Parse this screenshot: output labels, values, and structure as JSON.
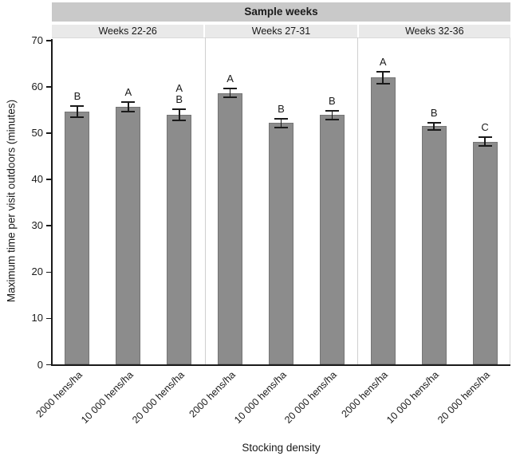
{
  "chart_data": {
    "type": "bar",
    "title": "Sample weeks",
    "xlabel": "Stocking density",
    "ylabel": "Maximum time per visit outdoors (minutes)",
    "ylim": [
      0,
      70
    ],
    "yticks": [
      0,
      10,
      20,
      30,
      40,
      50,
      60,
      70
    ],
    "grid": false,
    "legend": "none",
    "bar_color": "#8c8c8c",
    "bar_edge_color": "#757575",
    "error_bar_color": "#1a1a1a",
    "title_strip_fill": "#c9c9c9",
    "subheader_strip_fill": "#e9e9e9",
    "categories": [
      "2000 hens/ha",
      "10 000 hens/ha",
      "20 000 hens/ha"
    ],
    "panels": [
      {
        "label": "Weeks 22-26",
        "bars": [
          {
            "category": "2000 hens/ha",
            "value": 54.6,
            "se": 1.2,
            "sig": [
              "B"
            ]
          },
          {
            "category": "10 000 hens/ha",
            "value": 55.7,
            "se": 1.0,
            "sig": [
              "A"
            ]
          },
          {
            "category": "20 000 hens/ha",
            "value": 54.0,
            "se": 1.2,
            "sig": [
              "A",
              "B"
            ]
          }
        ]
      },
      {
        "label": "Weeks 27-31",
        "bars": [
          {
            "category": "2000 hens/ha",
            "value": 58.7,
            "se": 0.9,
            "sig": [
              "A"
            ]
          },
          {
            "category": "10 000 hens/ha",
            "value": 52.2,
            "se": 1.0,
            "sig": [
              "B"
            ]
          },
          {
            "category": "20 000 hens/ha",
            "value": 53.9,
            "se": 0.9,
            "sig": [
              "B"
            ]
          }
        ]
      },
      {
        "label": "Weeks 32-36",
        "bars": [
          {
            "category": "2000 hens/ha",
            "value": 62.0,
            "se": 1.3,
            "sig": [
              "A"
            ]
          },
          {
            "category": "10 000 hens/ha",
            "value": 51.5,
            "se": 0.8,
            "sig": [
              "B"
            ]
          },
          {
            "category": "20 000 hens/ha",
            "value": 48.2,
            "se": 1.0,
            "sig": [
              "C"
            ]
          }
        ]
      }
    ]
  }
}
